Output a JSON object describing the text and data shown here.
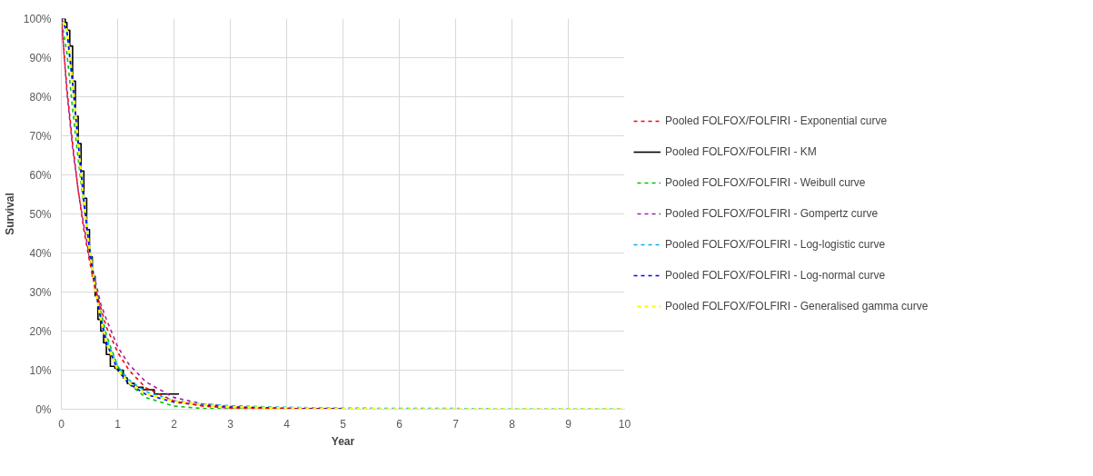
{
  "chart_data": {
    "type": "line",
    "xlabel": "Year",
    "ylabel": "Survival",
    "x": [
      0,
      0.1,
      0.2,
      0.3,
      0.4,
      0.5,
      0.6,
      0.7,
      0.8,
      1.0,
      1.2,
      1.5,
      2,
      2.5,
      3,
      4,
      5,
      6,
      7,
      8,
      9,
      10
    ],
    "series": [
      {
        "name": "Pooled FOLFOX/FOLFIRI - Exponential curve",
        "color": "#ff0000",
        "line_style": "dashed",
        "x": [
          0,
          0.1,
          0.2,
          0.3,
          0.4,
          0.5,
          0.6,
          0.7,
          0.8,
          1.0,
          1.2,
          1.5,
          2,
          2.5,
          3,
          4,
          5
        ],
        "values": [
          100,
          82,
          68,
          56,
          46,
          38,
          31,
          26,
          21,
          14.6,
          10,
          5.5,
          2.1,
          0.8,
          0.3,
          0.1,
          0
        ]
      },
      {
        "name": "Pooled FOLFOX/FOLFIRI - KM",
        "color": "#000000",
        "type": "step",
        "line_style": "solid",
        "x": [
          0,
          0.07,
          0.1,
          0.15,
          0.2,
          0.25,
          0.3,
          0.35,
          0.4,
          0.45,
          0.5,
          0.55,
          0.6,
          0.65,
          0.7,
          0.75,
          0.8,
          0.87,
          0.95,
          1.02,
          1.1,
          1.17,
          1.3,
          1.45,
          1.65,
          2.09
        ],
        "values": [
          100,
          99,
          97,
          93,
          84,
          75,
          68,
          61,
          54,
          46,
          39,
          34,
          29,
          23,
          20,
          17,
          14,
          11,
          10.5,
          10,
          8,
          6.6,
          5.6,
          5,
          3.9,
          3.9
        ]
      },
      {
        "name": "Pooled FOLFOX/FOLFIRI - Weibull curve",
        "color": "#00c000",
        "line_style": "dashed",
        "x": [
          0,
          0.1,
          0.2,
          0.3,
          0.4,
          0.5,
          0.6,
          0.7,
          0.8,
          1.0,
          1.2,
          1.5,
          2,
          2.5,
          3,
          4,
          5
        ],
        "values": [
          100,
          91,
          77,
          64,
          52,
          41,
          32,
          25,
          19,
          11,
          6.5,
          3,
          0.8,
          0.2,
          0.1,
          0,
          0
        ]
      },
      {
        "name": "Pooled FOLFOX/FOLFIRI - Gompertz curve",
        "color": "#a020a0",
        "line_style": "dashed",
        "x": [
          0,
          0.1,
          0.2,
          0.3,
          0.4,
          0.5,
          0.6,
          0.7,
          0.8,
          1.0,
          1.2,
          1.5,
          2,
          2.5,
          3,
          4,
          5
        ],
        "values": [
          100,
          81,
          67,
          56,
          47,
          39,
          33,
          27,
          23,
          16,
          11.5,
          7,
          3,
          1.4,
          0.7,
          0.2,
          0.1
        ]
      },
      {
        "name": "Pooled FOLFOX/FOLFIRI - Log-logistic curve",
        "color": "#00b0f0",
        "line_style": "dashed",
        "values": [
          100,
          96,
          83,
          68,
          54,
          42,
          32,
          24,
          18,
          11,
          7.5,
          4.5,
          2.2,
          1.3,
          0.9,
          0.5,
          0.3,
          0.2,
          0.2,
          0.1,
          0.1,
          0.1
        ]
      },
      {
        "name": "Pooled FOLFOX/FOLFIRI - Log-normal curve",
        "color": "#0000ff",
        "line_style": "dashed",
        "x": [
          0,
          0.1,
          0.2,
          0.3,
          0.4,
          0.5,
          0.6,
          0.7,
          0.8,
          1.0,
          1.2,
          1.5,
          2,
          2.5,
          3,
          4,
          5
        ],
        "values": [
          100,
          97,
          84,
          68,
          53,
          41,
          31,
          23,
          17,
          10,
          6.5,
          3.8,
          1.8,
          1,
          0.5,
          0.2,
          0.1
        ]
      },
      {
        "name": "Pooled FOLFOX/FOLFIRI - Generalised gamma curve",
        "color": "#ffff00",
        "line_style": "dashed",
        "values": [
          100,
          97,
          84,
          68,
          53,
          41,
          31,
          23,
          17,
          10,
          6.8,
          4,
          2,
          1.1,
          0.6,
          0.3,
          0.1,
          0,
          0,
          0,
          0,
          0
        ]
      }
    ],
    "xlim": [
      0,
      10
    ],
    "xticks": [
      0,
      1,
      2,
      3,
      4,
      5,
      6,
      7,
      8,
      9,
      10
    ],
    "ylim": [
      0,
      100
    ],
    "yticks": [
      {
        "value": 0,
        "label": "0%"
      },
      {
        "value": 10,
        "label": "10%"
      },
      {
        "value": 20,
        "label": "20%"
      },
      {
        "value": 30,
        "label": "30%"
      },
      {
        "value": 40,
        "label": "40%"
      },
      {
        "value": 50,
        "label": "50%"
      },
      {
        "value": 60,
        "label": "60%"
      },
      {
        "value": 70,
        "label": "70%"
      },
      {
        "value": 80,
        "label": "80%"
      },
      {
        "value": 90,
        "label": "90%"
      },
      {
        "value": 100,
        "label": "100%"
      }
    ],
    "grid": true,
    "legend": "right"
  }
}
